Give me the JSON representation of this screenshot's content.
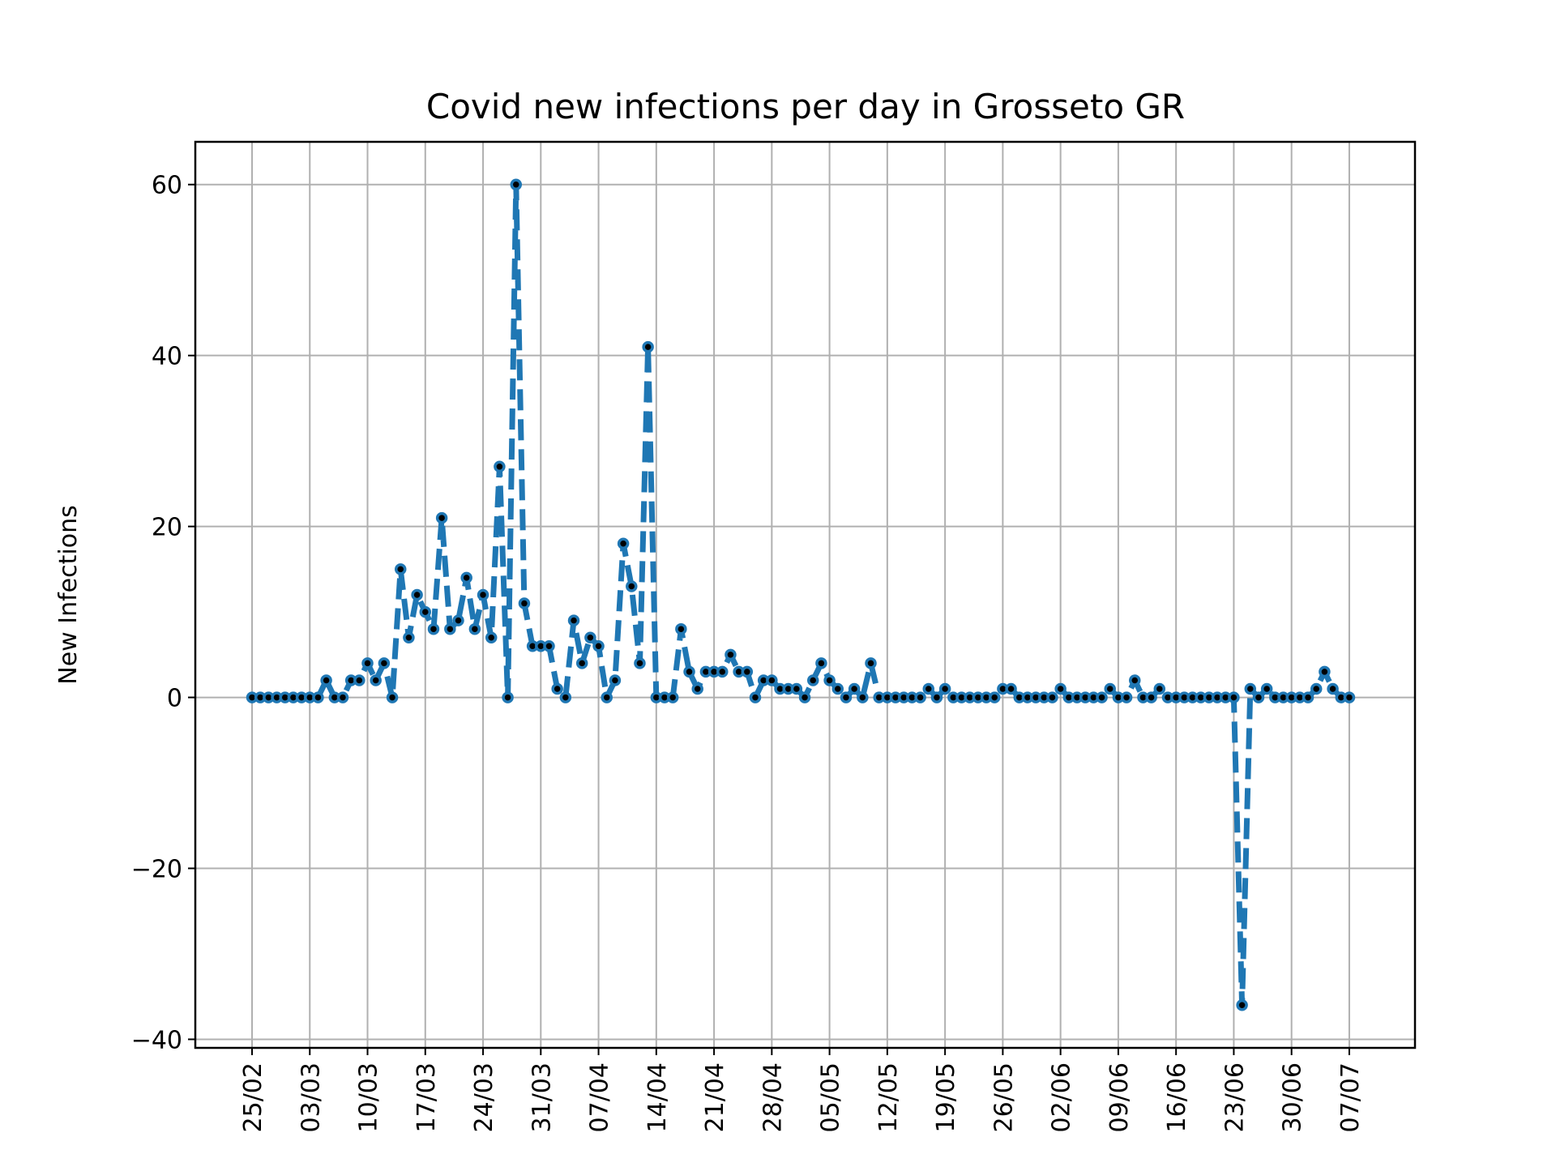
{
  "chart_data": {
    "type": "line",
    "title": "Covid new infections per day in Grosseto GR",
    "xlabel": "",
    "ylabel": "New Infections",
    "ylim": [
      -41,
      65
    ],
    "yticks": [
      -40,
      -20,
      0,
      20,
      40,
      60
    ],
    "ytick_labels": [
      "−40",
      "−20",
      "0",
      "20",
      "40",
      "60"
    ],
    "xticks": [
      "25/02",
      "03/03",
      "10/03",
      "17/03",
      "24/03",
      "31/03",
      "07/04",
      "14/04",
      "21/04",
      "28/04",
      "05/05",
      "12/05",
      "19/05",
      "26/05",
      "02/06",
      "09/06",
      "16/06",
      "23/06",
      "30/06",
      "07/07"
    ],
    "grid": true,
    "line_color": "#1f77b4",
    "marker_color": "#000000",
    "series": [
      {
        "values": [
          0,
          0,
          0,
          0,
          0,
          0,
          0,
          0,
          0,
          2,
          0,
          0,
          2,
          2,
          4,
          2,
          4,
          0,
          15,
          7,
          12,
          10,
          8,
          21,
          8,
          9,
          14,
          8,
          12,
          7,
          27,
          0,
          60,
          11,
          6,
          6,
          6,
          1,
          0,
          9,
          4,
          7,
          6,
          0,
          2,
          18,
          13,
          4,
          41,
          0,
          0,
          0,
          8,
          3,
          1,
          3,
          3,
          3,
          5,
          3,
          3,
          0,
          2,
          2,
          1,
          1,
          1,
          0,
          2,
          4,
          2,
          1,
          0,
          1,
          0,
          4,
          0,
          0,
          0,
          0,
          0,
          0,
          1,
          0,
          1,
          0,
          0,
          0,
          0,
          0,
          0,
          1,
          1,
          0,
          0,
          0,
          0,
          0,
          1,
          0,
          0,
          0,
          0,
          0,
          1,
          0,
          0,
          2,
          0,
          0,
          1,
          0,
          0,
          0,
          0,
          0,
          0,
          0,
          0,
          0,
          -36,
          1,
          0,
          1,
          0,
          0,
          0,
          0,
          0,
          1,
          3,
          1,
          0,
          0
        ]
      }
    ]
  }
}
